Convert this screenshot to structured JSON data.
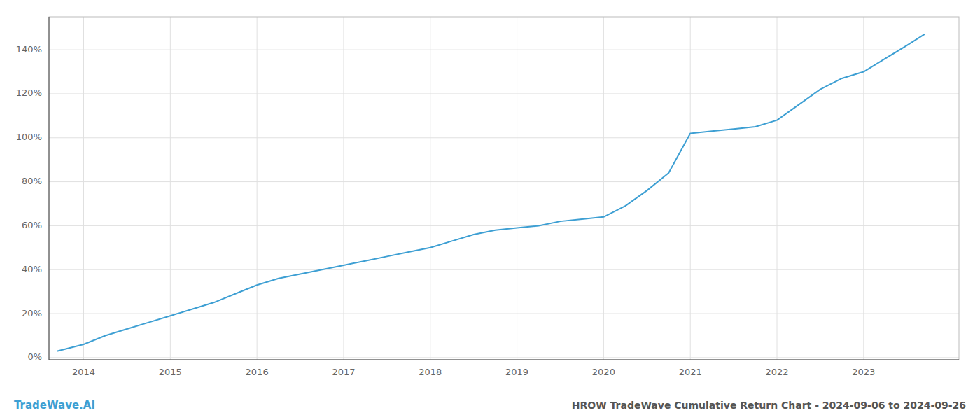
{
  "chart_data": {
    "type": "line",
    "title": "HROW TradeWave Cumulative Return Chart - 2024-09-06 to 2024-09-26",
    "annotations": [
      "TradeWave.AI"
    ],
    "x": [
      2013.7,
      2014.0,
      2014.25,
      2014.5,
      2014.75,
      2015.0,
      2015.25,
      2015.5,
      2015.75,
      2016.0,
      2016.25,
      2016.5,
      2016.75,
      2017.0,
      2017.25,
      2017.5,
      2017.75,
      2018.0,
      2018.25,
      2018.5,
      2018.75,
      2019.0,
      2019.25,
      2019.5,
      2019.75,
      2020.0,
      2020.25,
      2020.5,
      2020.75,
      2021.0,
      2021.25,
      2021.5,
      2021.75,
      2022.0,
      2022.25,
      2022.5,
      2022.75,
      2023.0,
      2023.25,
      2023.5,
      2023.7
    ],
    "values": [
      0.03,
      0.06,
      0.1,
      0.13,
      0.16,
      0.19,
      0.22,
      0.25,
      0.29,
      0.33,
      0.36,
      0.38,
      0.4,
      0.42,
      0.44,
      0.46,
      0.48,
      0.5,
      0.53,
      0.56,
      0.58,
      0.59,
      0.6,
      0.62,
      0.63,
      0.64,
      0.69,
      0.76,
      0.84,
      1.02,
      1.03,
      1.04,
      1.05,
      1.08,
      1.15,
      1.22,
      1.27,
      1.3,
      1.36,
      1.42,
      1.47
    ],
    "color": "#3d9fd3",
    "xlim": [
      2013.6,
      2024.1
    ],
    "xticks": [
      2014,
      2015,
      2016,
      2017,
      2018,
      2019,
      2020,
      2021,
      2022,
      2023
    ],
    "ylim": [
      -0.01,
      1.55
    ],
    "yticks": [
      {
        "value": 0.0,
        "label": "0%"
      },
      {
        "value": 0.2,
        "label": "20%"
      },
      {
        "value": 0.4,
        "label": "40%"
      },
      {
        "value": 0.6,
        "label": "60%"
      },
      {
        "value": 0.8,
        "label": "80%"
      },
      {
        "value": 1.0,
        "label": "100%"
      },
      {
        "value": 1.2,
        "label": "120%"
      },
      {
        "value": 1.4,
        "label": "140%"
      }
    ],
    "grid": true
  }
}
